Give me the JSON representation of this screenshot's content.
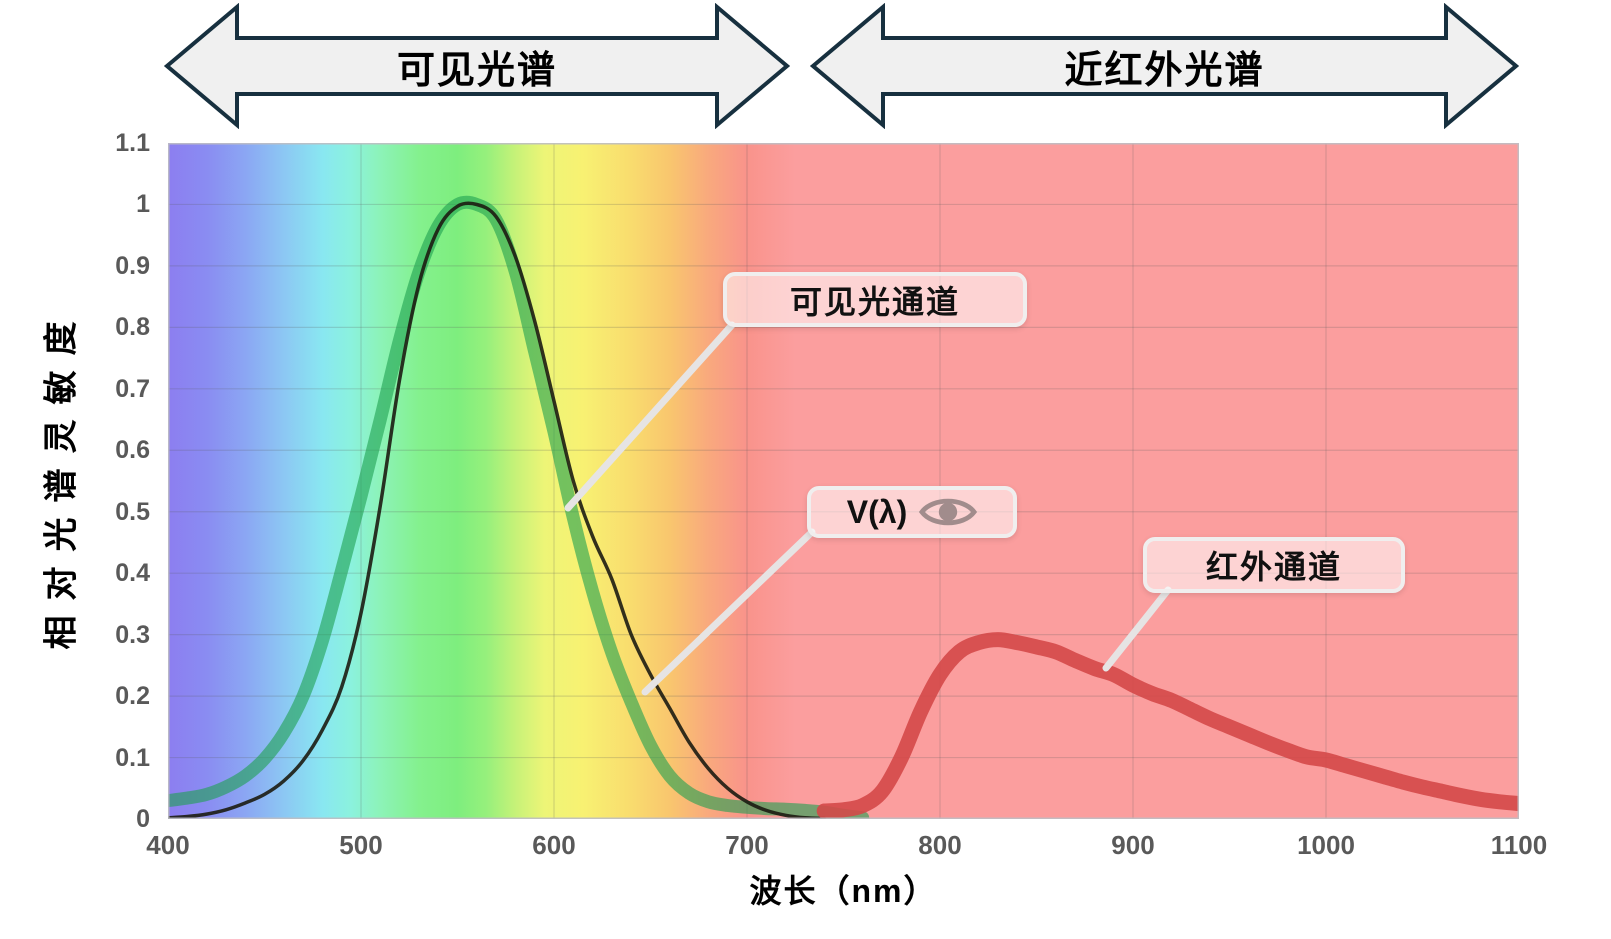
{
  "header_arrows": {
    "visible_label": "可见光谱",
    "nir_label": "近红外光谱"
  },
  "axes": {
    "y_title": "相对光谱灵敏度",
    "x_title": "波长（nm）",
    "y_ticks": [
      0,
      0.1,
      0.2,
      0.3,
      0.4,
      0.5,
      0.6,
      0.7,
      0.8,
      0.9,
      1,
      1.1
    ],
    "x_ticks": [
      400,
      500,
      600,
      700,
      800,
      900,
      1000,
      1100
    ]
  },
  "callouts": {
    "visible_channel": "可见光通道",
    "v_lambda": "V(λ)",
    "ir_channel": "红外通道"
  },
  "icons": [
    "eye-icon"
  ],
  "colors": {
    "arrow_fill": "#f0f0f0",
    "arrow_stroke": "#17303f",
    "callout_fill": "rgba(255,255,255,0.55)",
    "callout_border": "#f0eeee",
    "leader": "#e6e4e4",
    "tick": "#595959",
    "eye": "#a18c8c",
    "nir_background": "#fb9e9e"
  },
  "chart_data": {
    "type": "line",
    "title": "",
    "xlabel": "波长（nm）",
    "ylabel": "相对光谱灵敏度",
    "xlim": [
      400,
      1100
    ],
    "ylim": [
      0,
      1.1
    ],
    "grid": true,
    "x_gridlines": [
      500,
      600,
      700,
      800,
      900,
      1000
    ],
    "y_gridlines": [
      0.1,
      0.2,
      0.3,
      0.4,
      0.5,
      0.6,
      0.7,
      0.8,
      0.9,
      1.0
    ],
    "background": {
      "description": "visible-spectrum rainbow gradient from 400-720nm, flat translucent red for NIR 720-1100nm",
      "stops": [
        [
          400,
          "#8c7ef0"
        ],
        [
          420,
          "#8a8cf2"
        ],
        [
          440,
          "#8ba6f3"
        ],
        [
          460,
          "#8cc7f3"
        ],
        [
          480,
          "#89e7f1"
        ],
        [
          495,
          "#8bf2dd"
        ],
        [
          510,
          "#8cf3b8"
        ],
        [
          530,
          "#84f18e"
        ],
        [
          550,
          "#7eee7e"
        ],
        [
          565,
          "#96f07c"
        ],
        [
          580,
          "#c6f278"
        ],
        [
          595,
          "#edf577"
        ],
        [
          615,
          "#f8f172"
        ],
        [
          640,
          "#f9dc6e"
        ],
        [
          660,
          "#f9c66e"
        ],
        [
          680,
          "#f9a97d"
        ],
        [
          700,
          "#f9938b"
        ],
        [
          725,
          "#fb9e9e"
        ],
        [
          1100,
          "#fb9e9e"
        ]
      ]
    },
    "series": [
      {
        "name": "可见光通道",
        "color": "rgba(30,160,80,0.6)",
        "x": [
          400,
          410,
          420,
          430,
          440,
          450,
          460,
          470,
          480,
          490,
          500,
          510,
          520,
          530,
          540,
          550,
          560,
          570,
          580,
          590,
          600,
          610,
          620,
          630,
          640,
          650,
          660,
          670,
          680,
          690,
          700,
          710,
          720,
          730,
          740,
          750,
          760
        ],
        "y": [
          0.03,
          0.034,
          0.04,
          0.052,
          0.07,
          0.098,
          0.14,
          0.2,
          0.29,
          0.405,
          0.525,
          0.65,
          0.78,
          0.89,
          0.965,
          1.0,
          1.0,
          0.975,
          0.89,
          0.76,
          0.63,
          0.49,
          0.37,
          0.27,
          0.19,
          0.12,
          0.07,
          0.042,
          0.028,
          0.022,
          0.019,
          0.017,
          0.016,
          0.014,
          0.011,
          0.006,
          0.002
        ]
      },
      {
        "name": "V(λ)",
        "color": "rgba(28,28,18,0.9)",
        "x": [
          400,
          410,
          420,
          430,
          440,
          450,
          460,
          470,
          480,
          490,
          500,
          510,
          520,
          530,
          540,
          550,
          560,
          570,
          580,
          590,
          600,
          610,
          620,
          630,
          640,
          650,
          660,
          670,
          680,
          690,
          700,
          710,
          720,
          730,
          740
        ],
        "y": [
          0.002,
          0.004,
          0.008,
          0.015,
          0.026,
          0.04,
          0.062,
          0.095,
          0.145,
          0.215,
          0.335,
          0.51,
          0.715,
          0.87,
          0.96,
          0.997,
          1.0,
          0.98,
          0.915,
          0.81,
          0.68,
          0.55,
          0.46,
          0.39,
          0.3,
          0.235,
          0.18,
          0.125,
          0.082,
          0.05,
          0.028,
          0.014,
          0.006,
          0.002,
          0.001
        ]
      },
      {
        "name": "红外通道",
        "color": "rgba(212,72,72,0.9)",
        "x": [
          740,
          750,
          760,
          770,
          780,
          790,
          800,
          810,
          820,
          830,
          840,
          850,
          860,
          870,
          880,
          890,
          900,
          910,
          920,
          930,
          940,
          950,
          960,
          970,
          980,
          990,
          1000,
          1010,
          1020,
          1030,
          1040,
          1050,
          1060,
          1070,
          1080,
          1090,
          1100
        ],
        "y": [
          0.013,
          0.015,
          0.022,
          0.045,
          0.1,
          0.175,
          0.235,
          0.272,
          0.287,
          0.292,
          0.287,
          0.28,
          0.272,
          0.258,
          0.245,
          0.235,
          0.218,
          0.204,
          0.193,
          0.178,
          0.163,
          0.15,
          0.137,
          0.124,
          0.112,
          0.101,
          0.096,
          0.087,
          0.078,
          0.069,
          0.06,
          0.052,
          0.045,
          0.038,
          0.032,
          0.028,
          0.025
        ]
      }
    ],
    "annotations": [
      {
        "label": "可见光通道",
        "target_nm": 607,
        "target_value": 0.51
      },
      {
        "label": "V(λ)",
        "target_nm": 647,
        "target_value": 0.21
      },
      {
        "label": "红外通道",
        "target_nm": 886,
        "target_value": 0.25
      }
    ]
  }
}
